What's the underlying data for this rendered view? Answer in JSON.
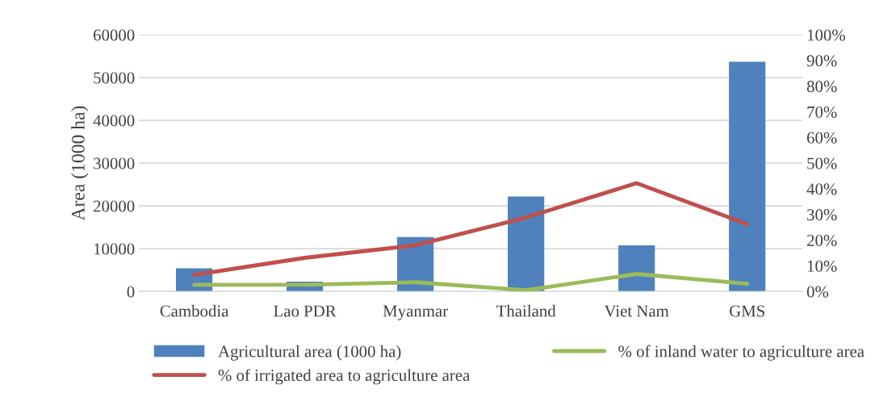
{
  "chart_data": {
    "type": "bar",
    "ylabel": "Area (1000 ha)",
    "categories": [
      "Cambodia",
      "Lao PDR",
      "Myanmar",
      "Thailand",
      "Viet Nam",
      "GMS"
    ],
    "series": [
      {
        "name": "Agricultural area (1000 ha)",
        "color": "#4f81bd",
        "values": [
          5400,
          2300,
          12700,
          22200,
          10800,
          53700
        ]
      },
      {
        "name": "% of irrigated area to agriculture area",
        "type": "line",
        "axis": "y2",
        "color": "#c0504d",
        "values": [
          6.5,
          13.1,
          18.0,
          28.8,
          42.2,
          26.2
        ]
      },
      {
        "name": "% of inland water to agriculture area",
        "type": "line",
        "axis": "y2",
        "color": "#9bbb59",
        "values": [
          2.6,
          2.6,
          3.6,
          0.5,
          6.8,
          3.0
        ]
      }
    ],
    "ylim": [
      0,
      60000
    ],
    "yticks": [
      0,
      10000,
      20000,
      30000,
      40000,
      50000,
      60000
    ],
    "y2lim": [
      0,
      100
    ],
    "y2ticks": [
      {
        "value": 0,
        "label": "0%"
      },
      {
        "value": 10,
        "label": "10%"
      },
      {
        "value": 20,
        "label": "20%"
      },
      {
        "value": 30,
        "label": "30%"
      },
      {
        "value": 40,
        "label": "40%"
      },
      {
        "value": 50,
        "label": "50%"
      },
      {
        "value": 60,
        "label": "60%"
      },
      {
        "value": 70,
        "label": "70%"
      },
      {
        "value": 80,
        "label": "80%"
      },
      {
        "value": 90,
        "label": "90%"
      },
      {
        "value": 100,
        "label": "100%"
      }
    ],
    "grid": "y",
    "legend": "bottom"
  }
}
